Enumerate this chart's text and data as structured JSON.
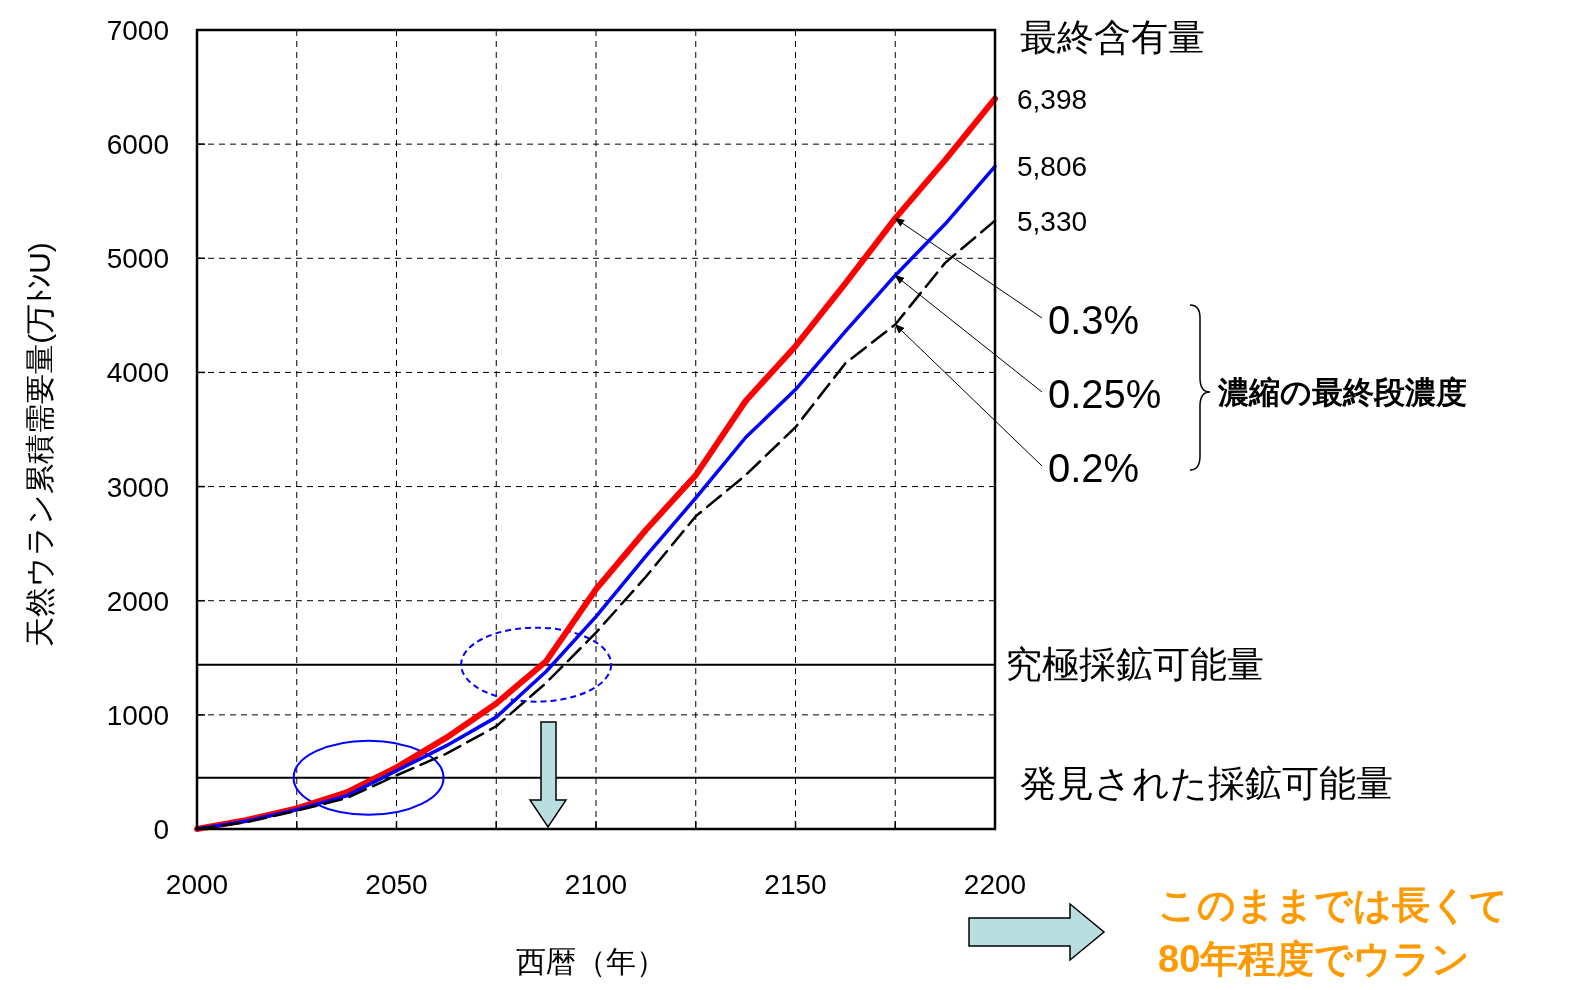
{
  "chart_data": {
    "type": "line",
    "xlabel": "西暦（年）",
    "ylabel": "天然ウラン累積需要量(万ﾄﾝU)",
    "legend_title": "濃縮の最終段濃度",
    "x": [
      2000,
      2012.5,
      2025,
      2037.5,
      2050,
      2062.5,
      2075,
      2087.5,
      2100,
      2112.5,
      2125,
      2137.5,
      2150,
      2162.5,
      2175,
      2187.5,
      2200
    ],
    "xlim": [
      2000,
      2200
    ],
    "xticks": [
      2000,
      {
        "value": 2025,
        "label": null
      },
      2050,
      {
        "value": 2075,
        "label": null
      },
      2100,
      {
        "value": 2125,
        "label": null
      },
      2150,
      {
        "value": 2175,
        "label": null
      },
      2200
    ],
    "ylim": [
      0,
      7000
    ],
    "yticks": [
      0,
      1000,
      2000,
      3000,
      4000,
      5000,
      6000,
      7000
    ],
    "grid": true,
    "series": [
      {
        "name": "0.3%",
        "color": "#ff0000",
        "values": [
          0,
          80,
          180,
          320,
          540,
          800,
          1100,
          1470,
          2100,
          2620,
          3100,
          3750,
          4230,
          4780,
          5350,
          5860,
          6398
        ],
        "value_labels": [
          null,
          null,
          null,
          null,
          null,
          null,
          null,
          null,
          null,
          null,
          null,
          null,
          null,
          null,
          null,
          null,
          "6,398"
        ]
      },
      {
        "name": "0.25%",
        "color": "#0000ff",
        "values": [
          0,
          70,
          170,
          290,
          510,
          730,
          980,
          1380,
          1860,
          2390,
          2900,
          3430,
          3850,
          4360,
          4850,
          5300,
          5806
        ],
        "value_labels": [
          null,
          null,
          null,
          null,
          null,
          null,
          null,
          null,
          null,
          null,
          null,
          null,
          null,
          null,
          null,
          null,
          "5,806"
        ]
      },
      {
        "name": "0.2%",
        "color": "#000000",
        "line_style": "dashed",
        "values": [
          0,
          60,
          160,
          270,
          470,
          660,
          900,
          1280,
          1720,
          2210,
          2740,
          3100,
          3520,
          4080,
          4420,
          4960,
          5330
        ],
        "value_labels": [
          null,
          null,
          null,
          null,
          null,
          null,
          null,
          null,
          null,
          null,
          null,
          null,
          null,
          null,
          null,
          null,
          "5,330"
        ]
      }
    ],
    "ref_lines": [
      {
        "axis": "y",
        "value": 1440,
        "label": "究極採鉱可能量",
        "color": "#000000"
      },
      {
        "axis": "y",
        "value": 450,
        "label": "発見された採鉱可能量",
        "color": "#000000"
      }
    ],
    "annotations": [
      "最終含有量",
      "このままでは長くて",
      "80年程度でウラン"
    ]
  }
}
